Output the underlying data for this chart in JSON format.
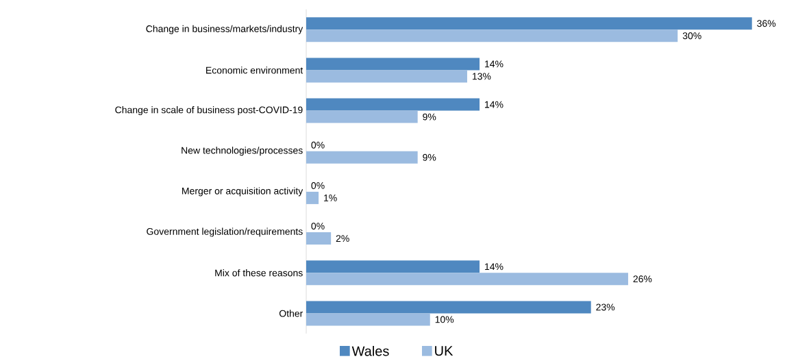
{
  "chart_data": {
    "type": "bar",
    "orientation": "horizontal",
    "categories": [
      "Change in business/markets/industry",
      "Economic environment",
      "Change in scale of business post-COVID-19",
      "New technologies/processes",
      "Merger or acquisition activity",
      "Government legislation/requirements",
      "Mix of these reasons",
      "Other"
    ],
    "series": [
      {
        "name": "Wales",
        "color": "#4f88c0",
        "values": [
          36,
          14,
          14,
          0,
          0,
          0,
          14,
          23
        ],
        "value_labels": [
          "36%",
          "14%",
          "14%",
          "0%",
          "0%",
          "0%",
          "14%",
          "23%"
        ]
      },
      {
        "name": "UK",
        "color": "#9bbbe0",
        "values": [
          30,
          13,
          9,
          9,
          1,
          2,
          26,
          10
        ],
        "value_labels": [
          "30%",
          "13%",
          "9%",
          "9%",
          "1%",
          "2%",
          "26%",
          "10%"
        ]
      }
    ],
    "legend": "bottom"
  }
}
